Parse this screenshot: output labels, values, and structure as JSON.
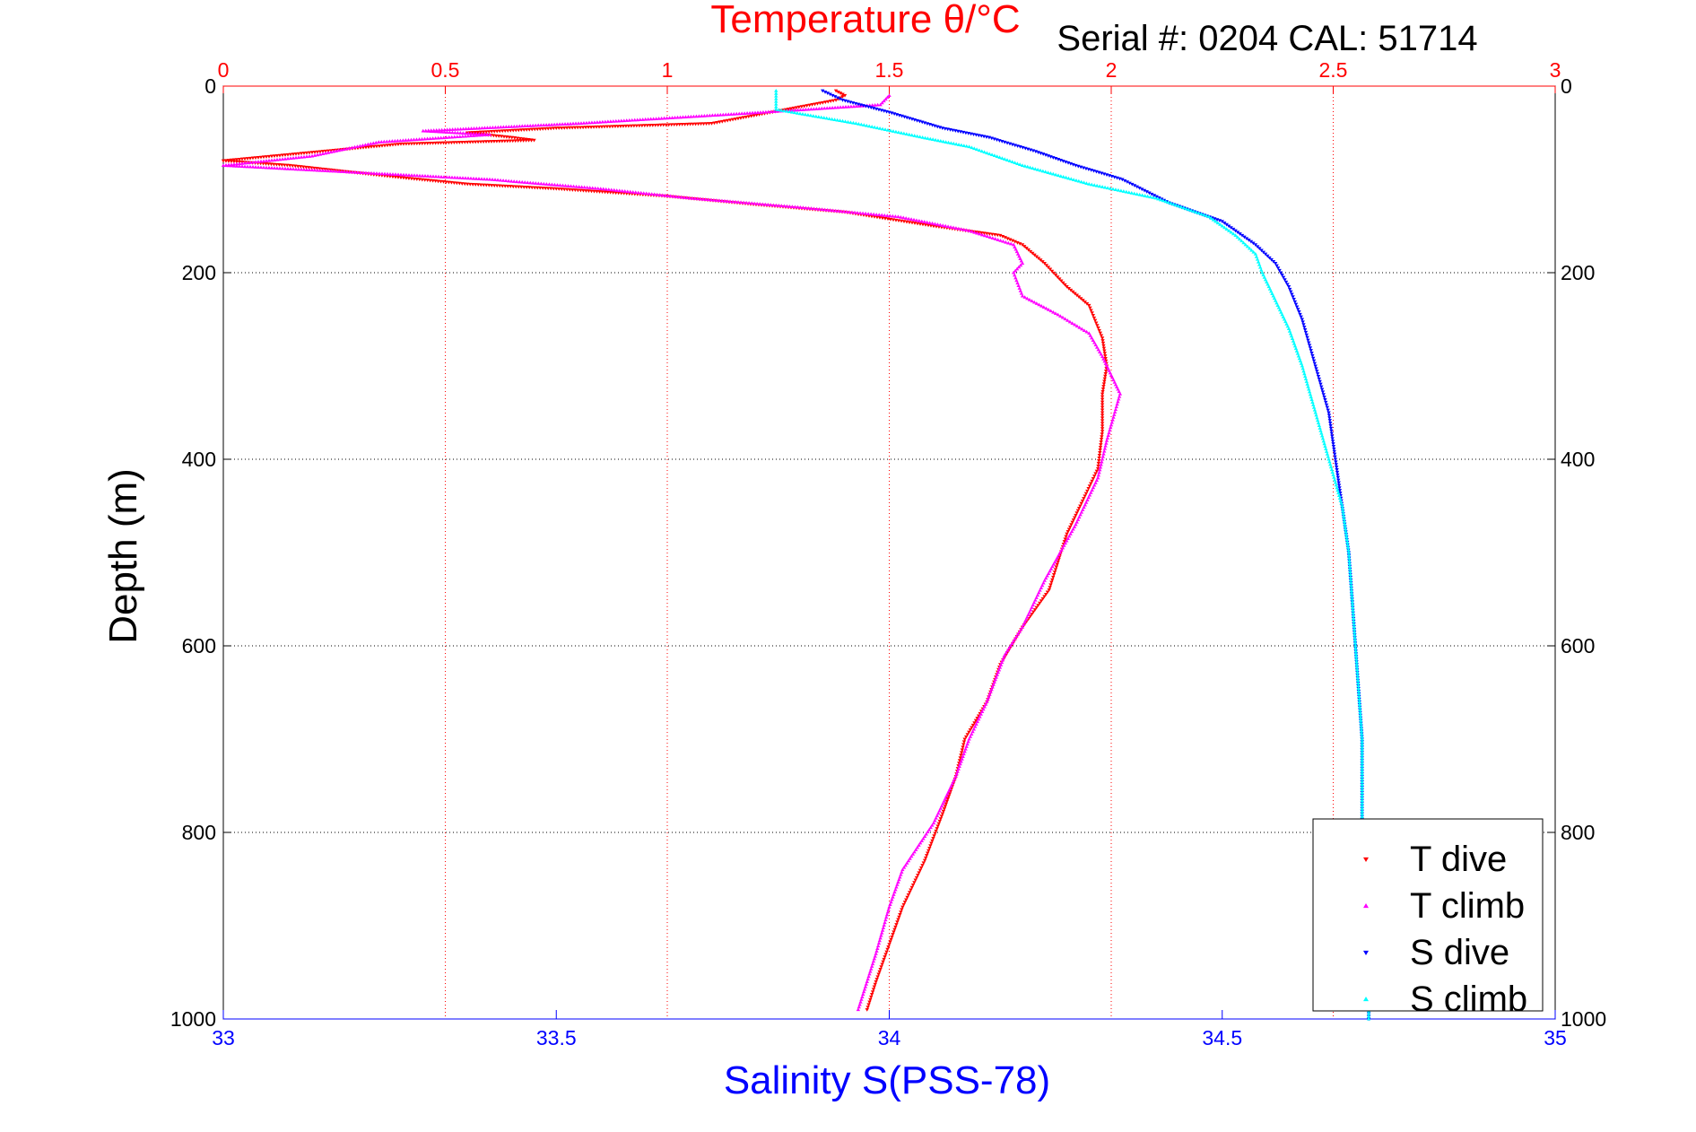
{
  "chart_data": {
    "type": "scatter",
    "title": "Temperature θ/°C",
    "subtitle": "Serial #: 0204   CAL: 51714",
    "ylabel": "Depth (m)",
    "xlabel": "Salinity S(PSS-78)",
    "x_top_label": "Temperature θ/°C",
    "x_bottom_label": "Salinity S(PSS-78)",
    "ylim": [
      0,
      1000
    ],
    "y_reversed": true,
    "temperature_lim": [
      0,
      3
    ],
    "salinity_lim": [
      33,
      35
    ],
    "y_ticks": [
      "0",
      "200",
      "400",
      "600",
      "800",
      "1000"
    ],
    "y_tick_values": [
      0,
      200,
      400,
      600,
      800,
      1000
    ],
    "temperature_ticks": [
      "0",
      "0.5",
      "1",
      "1.5",
      "2",
      "2.5",
      "3"
    ],
    "temperature_tick_values": [
      0,
      0.5,
      1,
      1.5,
      2,
      2.5,
      3
    ],
    "salinity_ticks": [
      "33",
      "33.5",
      "34",
      "34.5",
      "35"
    ],
    "salinity_tick_values": [
      33,
      33.5,
      34,
      34.5,
      35
    ],
    "grid": true,
    "legend_position": "bottom-right",
    "series": [
      {
        "name": "T dive",
        "axis": "temperature",
        "color": "#ff0000",
        "marker": "triangle-down",
        "points": [
          [
            1.38,
            5
          ],
          [
            1.4,
            10
          ],
          [
            1.38,
            15
          ],
          [
            1.1,
            40
          ],
          [
            0.75,
            45
          ],
          [
            0.55,
            50
          ],
          [
            0.65,
            55
          ],
          [
            0.7,
            58
          ],
          [
            0.4,
            62
          ],
          [
            0.0,
            80
          ],
          [
            0.15,
            85
          ],
          [
            0.4,
            98
          ],
          [
            0.55,
            105
          ],
          [
            0.75,
            110
          ],
          [
            1.0,
            118
          ],
          [
            1.2,
            127
          ],
          [
            1.4,
            135
          ],
          [
            1.6,
            150
          ],
          [
            1.75,
            160
          ],
          [
            1.8,
            170
          ],
          [
            1.85,
            190
          ],
          [
            1.9,
            215
          ],
          [
            1.95,
            235
          ],
          [
            1.98,
            270
          ],
          [
            1.99,
            300
          ],
          [
            1.98,
            330
          ],
          [
            1.98,
            370
          ],
          [
            1.97,
            410
          ],
          [
            1.93,
            450
          ],
          [
            1.9,
            480
          ],
          [
            1.86,
            540
          ],
          [
            1.8,
            580
          ],
          [
            1.75,
            620
          ],
          [
            1.72,
            660
          ],
          [
            1.67,
            700
          ],
          [
            1.65,
            740
          ],
          [
            1.62,
            780
          ],
          [
            1.58,
            830
          ],
          [
            1.53,
            880
          ],
          [
            1.5,
            920
          ],
          [
            1.47,
            960
          ],
          [
            1.45,
            990
          ]
        ]
      },
      {
        "name": "T climb",
        "axis": "temperature",
        "color": "#ff00ff",
        "marker": "triangle-up",
        "points": [
          [
            1.5,
            10
          ],
          [
            1.48,
            20
          ],
          [
            1.15,
            30
          ],
          [
            0.8,
            40
          ],
          [
            0.45,
            48
          ],
          [
            0.6,
            52
          ],
          [
            0.35,
            60
          ],
          [
            0.2,
            75
          ],
          [
            0.0,
            85
          ],
          [
            0.2,
            90
          ],
          [
            0.4,
            95
          ],
          [
            0.6,
            100
          ],
          [
            0.85,
            110
          ],
          [
            1.05,
            120
          ],
          [
            1.3,
            130
          ],
          [
            1.52,
            140
          ],
          [
            1.68,
            155
          ],
          [
            1.78,
            170
          ],
          [
            1.8,
            190
          ],
          [
            1.78,
            200
          ],
          [
            1.8,
            225
          ],
          [
            1.88,
            245
          ],
          [
            1.95,
            265
          ],
          [
            1.98,
            290
          ],
          [
            2.0,
            310
          ],
          [
            2.02,
            330
          ],
          [
            1.99,
            380
          ],
          [
            1.97,
            420
          ],
          [
            1.92,
            470
          ],
          [
            1.85,
            530
          ],
          [
            1.8,
            580
          ],
          [
            1.76,
            610
          ],
          [
            1.72,
            660
          ],
          [
            1.68,
            700
          ],
          [
            1.65,
            740
          ],
          [
            1.6,
            790
          ],
          [
            1.53,
            840
          ],
          [
            1.5,
            880
          ],
          [
            1.47,
            930
          ],
          [
            1.43,
            990
          ]
        ]
      },
      {
        "name": "S dive",
        "axis": "salinity",
        "color": "#0000ff",
        "marker": "triangle-down",
        "points": [
          [
            33.9,
            5
          ],
          [
            33.93,
            15
          ],
          [
            34.0,
            28
          ],
          [
            34.08,
            45
          ],
          [
            34.15,
            55
          ],
          [
            34.22,
            70
          ],
          [
            34.28,
            85
          ],
          [
            34.35,
            100
          ],
          [
            34.42,
            125
          ],
          [
            34.5,
            145
          ],
          [
            34.55,
            170
          ],
          [
            34.58,
            190
          ],
          [
            34.6,
            215
          ],
          [
            34.62,
            250
          ],
          [
            34.64,
            300
          ],
          [
            34.66,
            350
          ],
          [
            34.67,
            400
          ],
          [
            34.68,
            450
          ],
          [
            34.69,
            500
          ],
          [
            34.695,
            550
          ],
          [
            34.7,
            600
          ],
          [
            34.71,
            700
          ],
          [
            34.71,
            800
          ],
          [
            34.72,
            900
          ],
          [
            34.72,
            1000
          ]
        ]
      },
      {
        "name": "S climb",
        "axis": "salinity",
        "color": "#00ffff",
        "marker": "triangle-up",
        "points": [
          [
            33.83,
            5
          ],
          [
            33.83,
            25
          ],
          [
            33.95,
            40
          ],
          [
            34.05,
            55
          ],
          [
            34.12,
            65
          ],
          [
            34.2,
            85
          ],
          [
            34.3,
            105
          ],
          [
            34.4,
            120
          ],
          [
            34.48,
            140
          ],
          [
            34.52,
            160
          ],
          [
            34.55,
            180
          ],
          [
            34.56,
            200
          ],
          [
            34.58,
            230
          ],
          [
            34.6,
            260
          ],
          [
            34.62,
            300
          ],
          [
            34.64,
            350
          ],
          [
            34.66,
            400
          ],
          [
            34.68,
            450
          ],
          [
            34.69,
            500
          ],
          [
            34.695,
            550
          ],
          [
            34.7,
            600
          ],
          [
            34.71,
            700
          ],
          [
            34.71,
            800
          ],
          [
            34.72,
            900
          ],
          [
            34.72,
            1000
          ]
        ]
      }
    ]
  }
}
